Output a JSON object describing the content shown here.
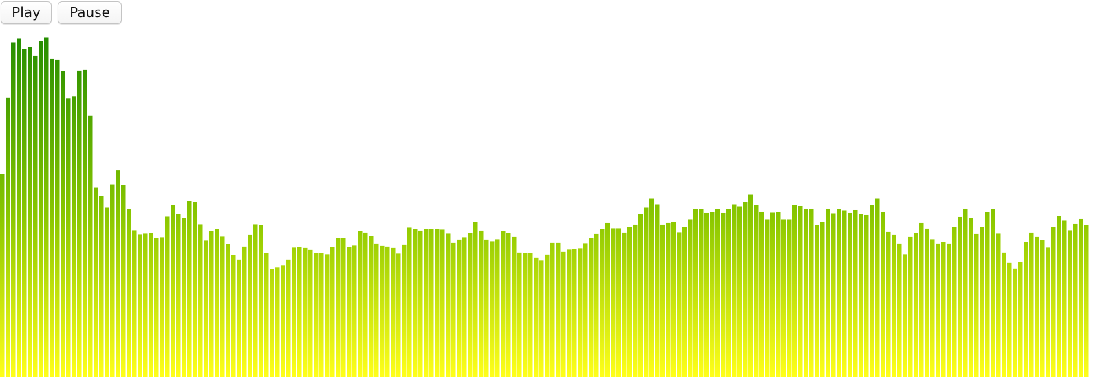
{
  "controls": {
    "play_label": "Play",
    "pause_label": "Pause"
  },
  "colors": {
    "bar_top": "#1f8a00",
    "bar_mid": "#8cc800",
    "bar_bottom": "#ffff1a"
  },
  "chart_data": {
    "type": "bar",
    "title": "",
    "xlabel": "",
    "ylabel": "",
    "ylim": [
      0,
      1
    ],
    "grid": false,
    "legend": "none",
    "values": [
      0.593,
      0.816,
      0.977,
      0.987,
      0.957,
      0.963,
      0.938,
      0.981,
      0.991,
      0.928,
      0.926,
      0.892,
      0.813,
      0.819,
      0.894,
      0.896,
      0.762,
      0.552,
      0.529,
      0.494,
      0.562,
      0.603,
      0.561,
      0.491,
      0.428,
      0.416,
      0.418,
      0.42,
      0.405,
      0.408,
      0.468,
      0.502,
      0.475,
      0.463,
      0.515,
      0.511,
      0.446,
      0.398,
      0.426,
      0.432,
      0.41,
      0.388,
      0.355,
      0.343,
      0.381,
      0.415,
      0.446,
      0.444,
      0.362,
      0.316,
      0.32,
      0.326,
      0.343,
      0.378,
      0.379,
      0.377,
      0.371,
      0.362,
      0.361,
      0.358,
      0.379,
      0.405,
      0.405,
      0.38,
      0.384,
      0.426,
      0.421,
      0.411,
      0.389,
      0.383,
      0.381,
      0.377,
      0.36,
      0.385,
      0.436,
      0.432,
      0.427,
      0.431,
      0.431,
      0.431,
      0.43,
      0.418,
      0.391,
      0.401,
      0.408,
      0.42,
      0.451,
      0.427,
      0.401,
      0.396,
      0.402,
      0.426,
      0.42,
      0.409,
      0.363,
      0.361,
      0.361,
      0.349,
      0.34,
      0.357,
      0.391,
      0.391,
      0.365,
      0.372,
      0.373,
      0.376,
      0.39,
      0.405,
      0.417,
      0.431,
      0.449,
      0.434,
      0.434,
      0.421,
      0.437,
      0.445,
      0.475,
      0.494,
      0.52,
      0.504,
      0.445,
      0.449,
      0.451,
      0.422,
      0.437,
      0.46,
      0.489,
      0.489,
      0.479,
      0.482,
      0.49,
      0.479,
      0.489,
      0.504,
      0.498,
      0.511,
      0.532,
      0.501,
      0.483,
      0.46,
      0.48,
      0.482,
      0.46,
      0.46,
      0.503,
      0.499,
      0.491,
      0.491,
      0.444,
      0.452,
      0.491,
      0.478,
      0.49,
      0.486,
      0.479,
      0.487,
      0.475,
      0.473,
      0.503,
      0.52,
      0.482,
      0.423,
      0.415,
      0.389,
      0.358,
      0.409,
      0.419,
      0.449,
      0.433,
      0.402,
      0.389,
      0.394,
      0.389,
      0.437,
      0.467,
      0.491,
      0.463,
      0.417,
      0.438,
      0.482,
      0.49,
      0.418,
      0.363,
      0.333,
      0.317,
      0.335,
      0.393,
      0.421,
      0.409,
      0.399,
      0.378,
      0.438,
      0.47,
      0.456,
      0.428,
      0.447,
      0.461,
      0.443
    ]
  }
}
